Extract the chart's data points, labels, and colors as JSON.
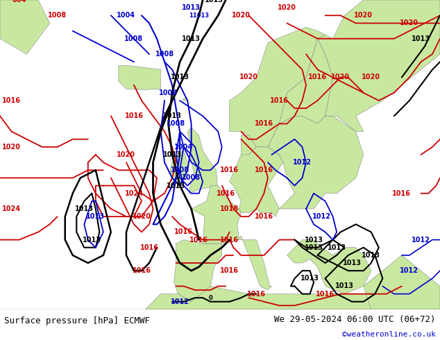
{
  "title_left": "Surface pressure [hPa] ECMWF",
  "title_right": "We 29-05-2024 06:00 UTC (06+72)",
  "copyright": "©weatheronline.co.uk",
  "ocean_color": "#e8e8e8",
  "land_color": "#c8e8a0",
  "coast_color": "#888888",
  "footer_bg": "#ffffff",
  "fig_width": 6.34,
  "fig_height": 4.9,
  "dpi": 100
}
